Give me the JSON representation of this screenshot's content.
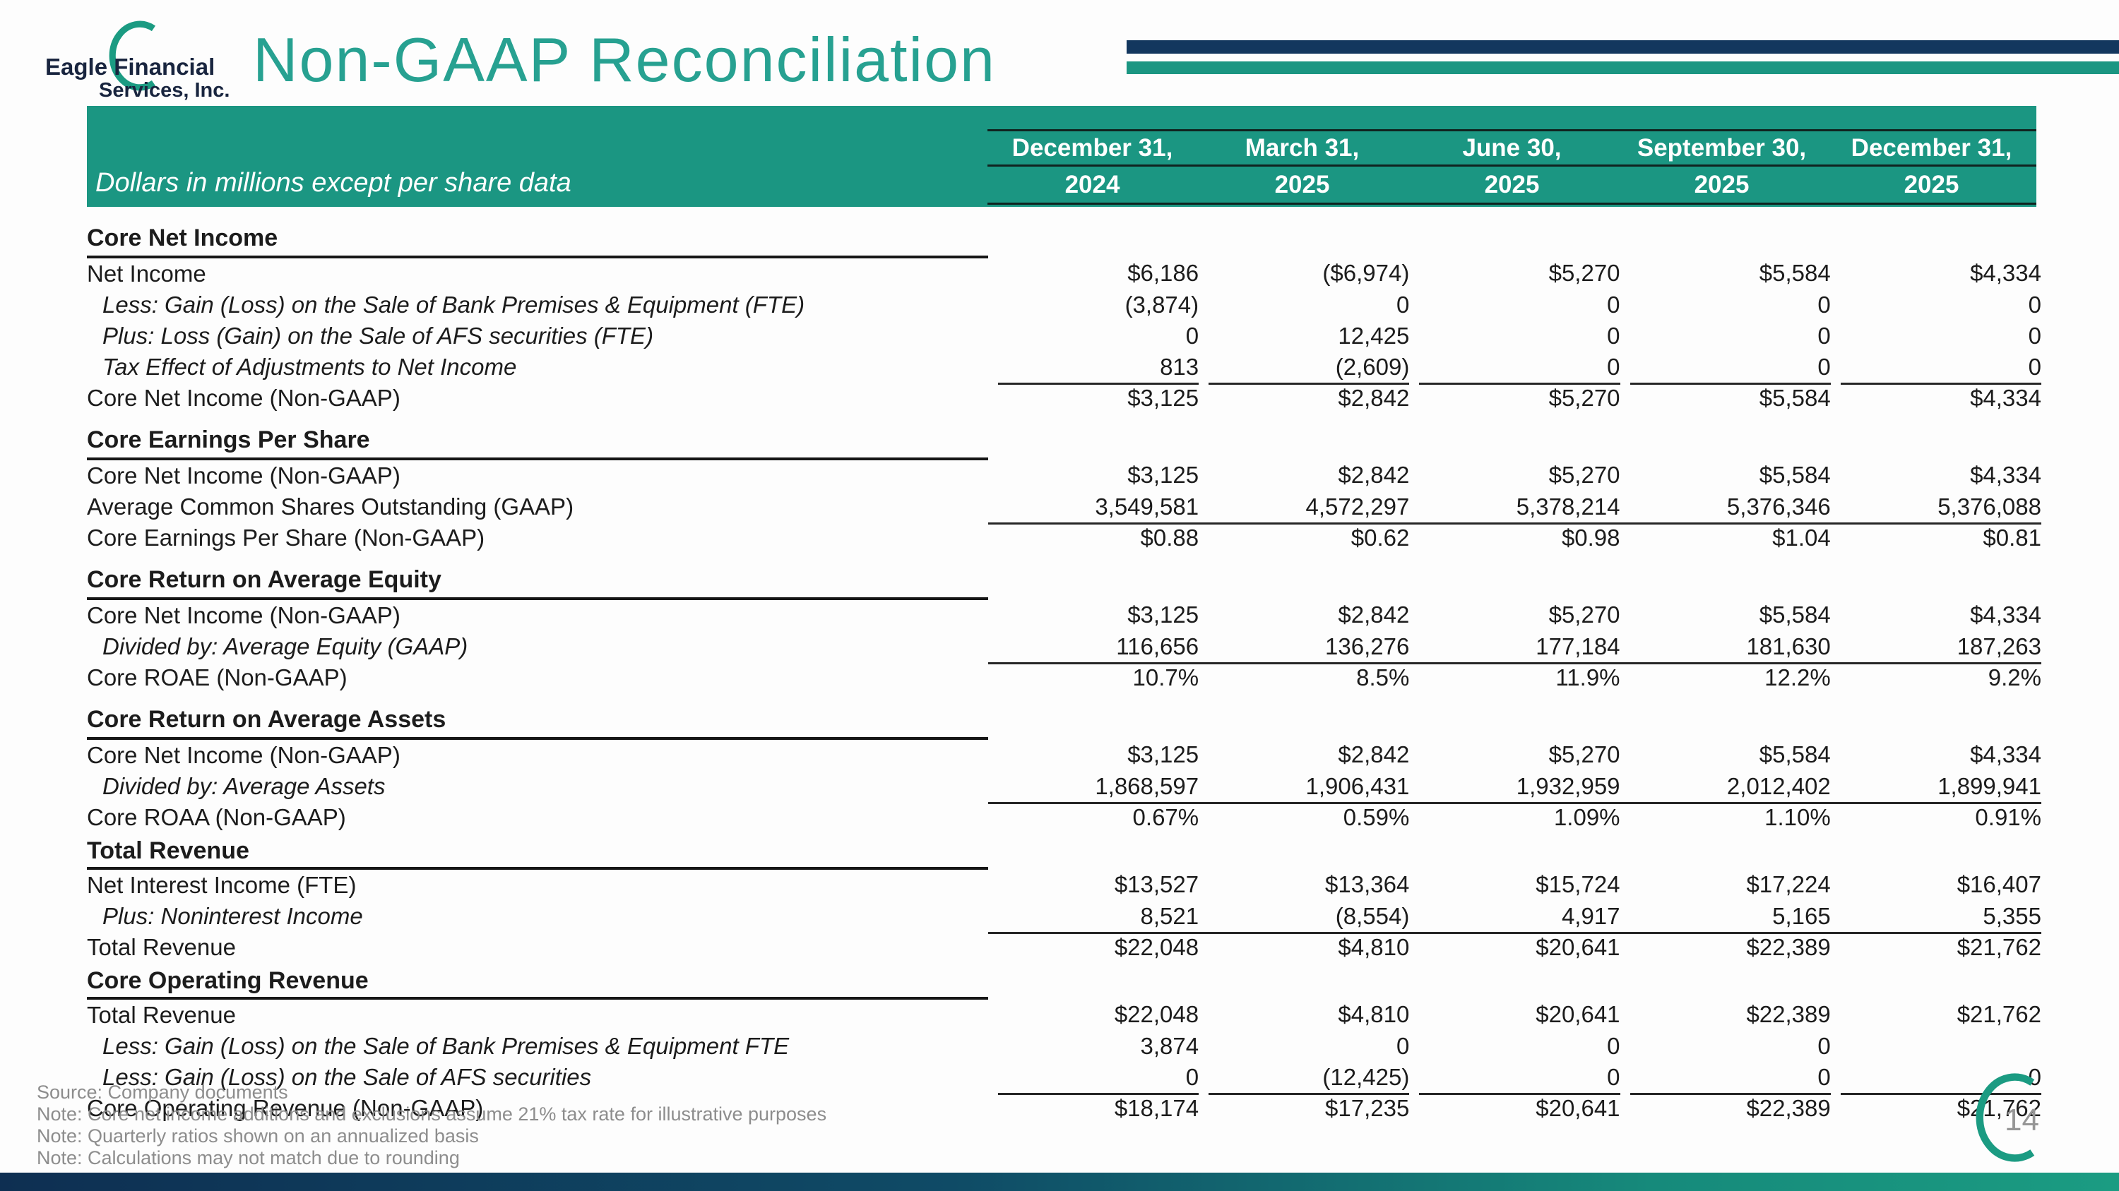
{
  "logo": {
    "line1": "Eagle Financial",
    "line2": "Services, Inc."
  },
  "title": "Non-GAAP Reconciliation",
  "page_number": "14",
  "colors": {
    "teal": "#1b9682",
    "navy": "#13375e",
    "title_teal": "#27a191",
    "footer_gray": "#8d8d8d"
  },
  "table": {
    "caption": "Dollars in millions except per share data",
    "columns": [
      {
        "date": "December 31,",
        "year": "2024"
      },
      {
        "date": "March 31,",
        "year": "2025"
      },
      {
        "date": "June 30,",
        "year": "2025"
      },
      {
        "date": "September 30,",
        "year": "2025"
      },
      {
        "date": "December 31,",
        "year": "2025"
      }
    ],
    "sections": [
      {
        "header": "Core Net Income",
        "rows": [
          {
            "label": "Net Income",
            "values": [
              "$6,186",
              "($6,974)",
              "$5,270",
              "$5,584",
              "$4,334"
            ]
          },
          {
            "label": "Less: Gain (Loss) on the Sale of Bank Premises & Equipment (FTE)",
            "italic": true,
            "values": [
              "(3,874)",
              "0",
              "0",
              "0",
              "0"
            ]
          },
          {
            "label": "Plus: Loss (Gain) on the Sale of AFS securities (FTE)",
            "italic": true,
            "values": [
              "0",
              "12,425",
              "0",
              "0",
              "0"
            ]
          },
          {
            "label": "Tax Effect of Adjustments to Net Income",
            "italic": true,
            "values": [
              "813",
              "(2,609)",
              "0",
              "0",
              "0"
            ]
          },
          {
            "label": "Core Net Income (Non-GAAP)",
            "rule": "seg",
            "values": [
              "$3,125",
              "$2,842",
              "$5,270",
              "$5,584",
              "$4,334"
            ]
          }
        ]
      },
      {
        "header": "Core Earnings Per Share",
        "rows": [
          {
            "label": "Core Net Income (Non-GAAP)",
            "values": [
              "$3,125",
              "$2,842",
              "$5,270",
              "$5,584",
              "$4,334"
            ]
          },
          {
            "label": "Average Common Shares Outstanding (GAAP)",
            "values": [
              "3,549,581",
              "4,572,297",
              "5,378,214",
              "5,376,346",
              "5,376,088"
            ]
          },
          {
            "label": "Core Earnings Per Share (Non-GAAP)",
            "rule": "cont",
            "values": [
              "$0.88",
              "$0.62",
              "$0.98",
              "$1.04",
              "$0.81"
            ]
          }
        ]
      },
      {
        "header": "Core Return on Average Equity",
        "rows": [
          {
            "label": "Core Net Income (Non-GAAP)",
            "values": [
              "$3,125",
              "$2,842",
              "$5,270",
              "$5,584",
              "$4,334"
            ]
          },
          {
            "label": "Divided by: Average Equity (GAAP)",
            "italic": true,
            "values": [
              "116,656",
              "136,276",
              "177,184",
              "181,630",
              "187,263"
            ]
          },
          {
            "label": "Core ROAE (Non-GAAP)",
            "rule": "cont",
            "values": [
              "10.7%",
              "8.5%",
              "11.9%",
              "12.2%",
              "9.2%"
            ]
          }
        ]
      },
      {
        "header": "Core Return on Average Assets",
        "rows": [
          {
            "label": "Core Net Income (Non-GAAP)",
            "values": [
              "$3,125",
              "$2,842",
              "$5,270",
              "$5,584",
              "$4,334"
            ]
          },
          {
            "label": "Divided by: Average Assets",
            "italic": true,
            "values": [
              "1,868,597",
              "1,906,431",
              "1,932,959",
              "2,012,402",
              "1,899,941"
            ]
          },
          {
            "label": "Core ROAA (Non-GAAP)",
            "rule": "cont",
            "values": [
              "0.67%",
              "0.59%",
              "1.09%",
              "1.10%",
              "0.91%"
            ]
          }
        ]
      },
      {
        "header": "Total Revenue",
        "tight": true,
        "rows": [
          {
            "label": "Net Interest Income (FTE)",
            "values": [
              "$13,527",
              "$13,364",
              "$15,724",
              "$17,224",
              "$16,407"
            ]
          },
          {
            "label": "Plus: Noninterest Income",
            "italic": true,
            "values": [
              "8,521",
              "(8,554)",
              "4,917",
              "5,165",
              "5,355"
            ]
          },
          {
            "label": "Total Revenue",
            "rule": "cont",
            "values": [
              "$22,048",
              "$4,810",
              "$20,641",
              "$22,389",
              "$21,762"
            ]
          }
        ]
      },
      {
        "header": "Core Operating Revenue",
        "tight": true,
        "rows": [
          {
            "label": "Total Revenue",
            "values": [
              "$22,048",
              "$4,810",
              "$20,641",
              "$22,389",
              "$21,762"
            ]
          },
          {
            "label": "Less: Gain (Loss) on the Sale of Bank Premises & Equipment FTE",
            "italic": true,
            "values": [
              "3,874",
              "0",
              "0",
              "0",
              ""
            ]
          },
          {
            "label": "Less: Gain (Loss) on the Sale of AFS securities",
            "italic": true,
            "values": [
              "0",
              "(12,425)",
              "0",
              "0",
              "0"
            ]
          },
          {
            "label": "Core Operating Revenue (Non-GAAP)",
            "rule": "seg",
            "values": [
              "$18,174",
              "$17,235",
              "$20,641",
              "$22,389",
              "$21,762"
            ]
          }
        ]
      }
    ]
  },
  "footer": {
    "source": "Source: Company documents",
    "notes": [
      "Note: Core net income additions and exclusions assume 21% tax rate for illustrative purposes",
      "Note: Quarterly ratios shown on an annualized basis",
      "Note: Calculations may not match due to rounding"
    ]
  }
}
